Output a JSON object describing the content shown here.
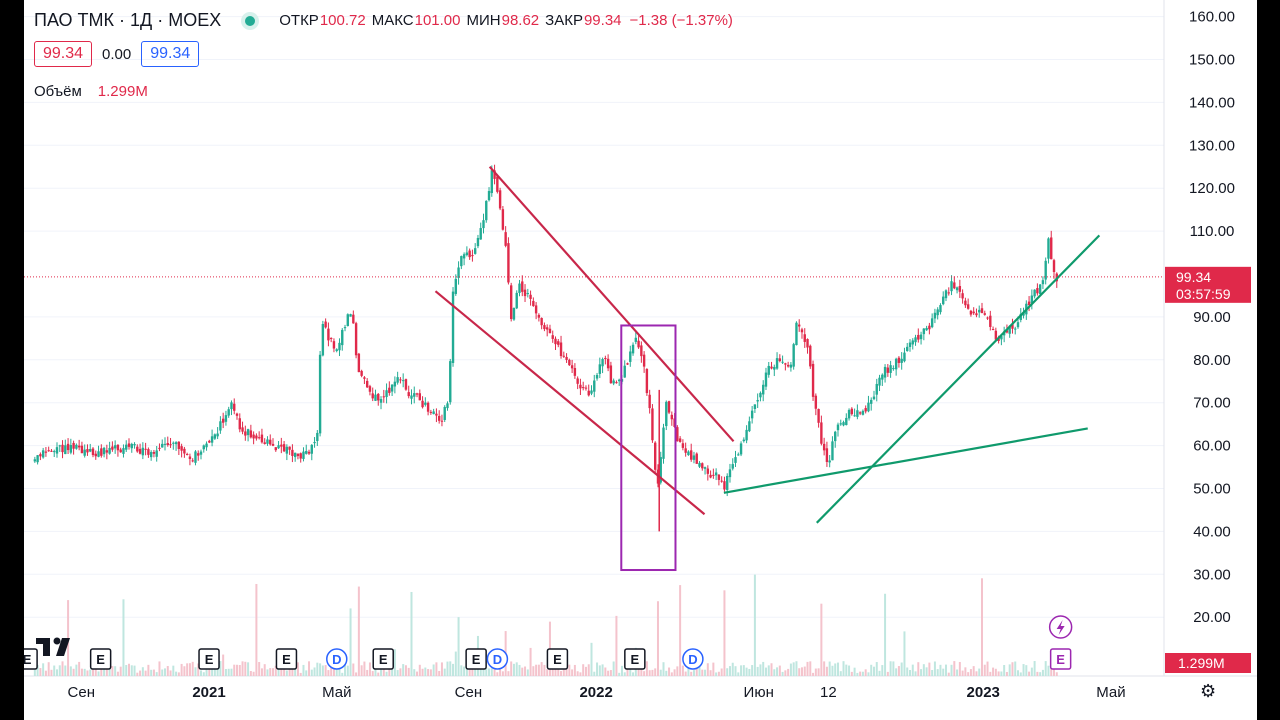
{
  "header": {
    "symbol": "ПАО ТМК · 1Д · MOEX",
    "open_label": "ОТКР",
    "open": "100.72",
    "high_label": "МАКС",
    "high": "101.00",
    "low_label": "МИН",
    "low": "98.62",
    "close_label": "ЗАКР",
    "close": "99.34",
    "change": "−1.38 (−1.37%)",
    "bid": "99.34",
    "spread": "0.00",
    "ask": "99.34",
    "volume_label": "Объём",
    "volume": "1.299M"
  },
  "chart_data": {
    "type": "candlestick",
    "y_axis": {
      "ticks": [
        "160.00",
        "150.00",
        "140.00",
        "130.00",
        "120.00",
        "110.00",
        "90.00",
        "80.00",
        "70.00",
        "60.00",
        "50.00",
        "40.00",
        "30.00",
        "20.00"
      ],
      "ylim": [
        12,
        162
      ]
    },
    "x_axis": {
      "labels": [
        "Сен",
        "2021",
        "Май",
        "Сен",
        "2022",
        "Июн",
        "12",
        "2023",
        "Май"
      ]
    },
    "last_price": "99.34",
    "countdown": "03:57:59",
    "volume_badge": "1.299M",
    "colors": {
      "up": "#22ab94",
      "down": "#e0294a",
      "channel": "#c8274a",
      "support": "#0f9a6c",
      "box": "#9c27b0",
      "grid": "#f0f3fa",
      "price_line": "#e0294a"
    },
    "price_path": [
      [
        2020.55,
        57
      ],
      [
        2020.6,
        59
      ],
      [
        2020.65,
        60
      ],
      [
        2020.7,
        58
      ],
      [
        2020.75,
        59
      ],
      [
        2020.8,
        60
      ],
      [
        2020.85,
        58
      ],
      [
        2020.9,
        61
      ],
      [
        2020.95,
        57
      ],
      [
        2021.0,
        60
      ],
      [
        2021.04,
        67
      ],
      [
        2021.06,
        70
      ],
      [
        2021.08,
        64
      ],
      [
        2021.12,
        62
      ],
      [
        2021.16,
        60
      ],
      [
        2021.2,
        59
      ],
      [
        2021.23,
        57
      ],
      [
        2021.26,
        59
      ],
      [
        2021.28,
        62
      ],
      [
        2021.29,
        90
      ],
      [
        2021.31,
        85
      ],
      [
        2021.33,
        82
      ],
      [
        2021.35,
        88
      ],
      [
        2021.37,
        92
      ],
      [
        2021.38,
        80
      ],
      [
        2021.4,
        75
      ],
      [
        2021.43,
        71
      ],
      [
        2021.46,
        72
      ],
      [
        2021.49,
        76
      ],
      [
        2021.52,
        72
      ],
      [
        2021.55,
        70
      ],
      [
        2021.58,
        68
      ],
      [
        2021.6,
        66
      ],
      [
        2021.62,
        72
      ],
      [
        2021.63,
        95
      ],
      [
        2021.65,
        103
      ],
      [
        2021.68,
        105
      ],
      [
        2021.7,
        110
      ],
      [
        2021.72,
        118
      ],
      [
        2021.73,
        125
      ],
      [
        2021.75,
        117
      ],
      [
        2021.77,
        103
      ],
      [
        2021.78,
        90
      ],
      [
        2021.8,
        97
      ],
      [
        2021.83,
        95
      ],
      [
        2021.86,
        88
      ],
      [
        2021.89,
        85
      ],
      [
        2021.92,
        80
      ],
      [
        2021.95,
        75
      ],
      [
        2021.98,
        72
      ],
      [
        2022.0,
        75
      ],
      [
        2022.02,
        82
      ],
      [
        2022.04,
        74
      ],
      [
        2022.06,
        75
      ],
      [
        2022.08,
        79
      ],
      [
        2022.1,
        85
      ],
      [
        2022.12,
        80
      ],
      [
        2022.14,
        67
      ],
      [
        2022.15,
        55
      ],
      [
        2022.16,
        50
      ],
      [
        2022.17,
        62
      ],
      [
        2022.18,
        70
      ],
      [
        2022.2,
        64
      ],
      [
        2022.22,
        60
      ],
      [
        2022.25,
        57
      ],
      [
        2022.28,
        54
      ],
      [
        2022.31,
        53
      ],
      [
        2022.33,
        50
      ],
      [
        2022.35,
        55
      ],
      [
        2022.38,
        62
      ],
      [
        2022.41,
        70
      ],
      [
        2022.44,
        77
      ],
      [
        2022.47,
        80
      ],
      [
        2022.5,
        78
      ],
      [
        2022.52,
        90
      ],
      [
        2022.53,
        86
      ],
      [
        2022.55,
        82
      ],
      [
        2022.56,
        72
      ],
      [
        2022.58,
        62
      ],
      [
        2022.6,
        56
      ],
      [
        2022.62,
        64
      ],
      [
        2022.65,
        68
      ],
      [
        2022.68,
        67
      ],
      [
        2022.71,
        70
      ],
      [
        2022.74,
        77
      ],
      [
        2022.77,
        79
      ],
      [
        2022.8,
        82
      ],
      [
        2022.83,
        85
      ],
      [
        2022.86,
        88
      ],
      [
        2022.89,
        93
      ],
      [
        2022.92,
        98
      ],
      [
        2022.95,
        94
      ],
      [
        2022.97,
        90
      ],
      [
        2023.0,
        92
      ],
      [
        2023.03,
        85
      ],
      [
        2023.06,
        86
      ],
      [
        2023.09,
        89
      ],
      [
        2023.12,
        94
      ],
      [
        2023.15,
        97
      ],
      [
        2023.17,
        108
      ],
      [
        2023.18,
        101
      ],
      [
        2023.19,
        99.34
      ]
    ],
    "annotations": [
      {
        "name": "channel-upper",
        "x1": 2021.725,
        "y1": 125,
        "x2": 2022.355,
        "y2": 61
      },
      {
        "name": "channel-lower",
        "x1": 2021.585,
        "y1": 96,
        "x2": 2022.28,
        "y2": 44
      },
      {
        "name": "support-line-1",
        "x1": 2022.33,
        "y1": 49,
        "x2": 2023.27,
        "y2": 64
      },
      {
        "name": "support-line-2",
        "x1": 2022.57,
        "y1": 42,
        "x2": 2023.3,
        "y2": 109
      }
    ],
    "highlight_box": {
      "x1": 2022.065,
      "x2": 2022.205,
      "y1": 31,
      "y2": 88
    },
    "event_markers": [
      {
        "x": 2020.53,
        "label": "E"
      },
      {
        "x": 2020.72,
        "label": "E"
      },
      {
        "x": 2021.0,
        "label": "E"
      },
      {
        "x": 2021.2,
        "label": "E"
      },
      {
        "x": 2021.33,
        "label": "D"
      },
      {
        "x": 2021.45,
        "label": "E"
      },
      {
        "x": 2021.69,
        "label": "E"
      },
      {
        "x": 2021.745,
        "label": "D"
      },
      {
        "x": 2021.9,
        "label": "E"
      },
      {
        "x": 2022.1,
        "label": "E"
      },
      {
        "x": 2022.25,
        "label": "D"
      },
      {
        "x": 2023.2,
        "label": "E",
        "future": true
      }
    ],
    "lightning_x": 2023.2
  }
}
